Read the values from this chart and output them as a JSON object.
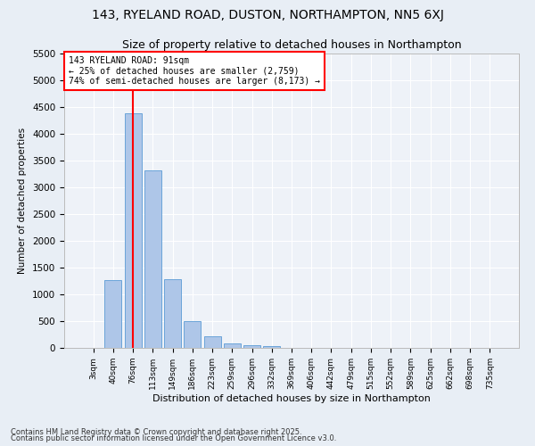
{
  "title1": "143, RYELAND ROAD, DUSTON, NORTHAMPTON, NN5 6XJ",
  "title2": "Size of property relative to detached houses in Northampton",
  "xlabel": "Distribution of detached houses by size in Northampton",
  "ylabel": "Number of detached properties",
  "categories": [
    "3sqm",
    "40sqm",
    "76sqm",
    "113sqm",
    "149sqm",
    "186sqm",
    "223sqm",
    "259sqm",
    "296sqm",
    "332sqm",
    "369sqm",
    "406sqm",
    "442sqm",
    "479sqm",
    "515sqm",
    "552sqm",
    "589sqm",
    "625sqm",
    "662sqm",
    "698sqm",
    "735sqm"
  ],
  "values": [
    0,
    1260,
    4380,
    3320,
    1280,
    500,
    220,
    90,
    55,
    40,
    0,
    0,
    0,
    0,
    0,
    0,
    0,
    0,
    0,
    0,
    0
  ],
  "bar_color": "#aec6e8",
  "bar_edge_color": "#5b9bd5",
  "vline_x": 2,
  "vline_color": "red",
  "annotation_title": "143 RYELAND ROAD: 91sqm",
  "annotation_line1": "← 25% of detached houses are smaller (2,759)",
  "annotation_line2": "74% of semi-detached houses are larger (8,173) →",
  "annotation_box_color": "white",
  "annotation_box_edge_color": "red",
  "ylim": [
    0,
    5500
  ],
  "yticks": [
    0,
    500,
    1000,
    1500,
    2000,
    2500,
    3000,
    3500,
    4000,
    4500,
    5000,
    5500
  ],
  "footer1": "Contains HM Land Registry data © Crown copyright and database right 2025.",
  "footer2": "Contains public sector information licensed under the Open Government Licence v3.0.",
  "bg_color": "#e8eef5",
  "plot_bg_color": "#eef2f8",
  "grid_color": "#ffffff",
  "title_fontsize": 10,
  "subtitle_fontsize": 9
}
